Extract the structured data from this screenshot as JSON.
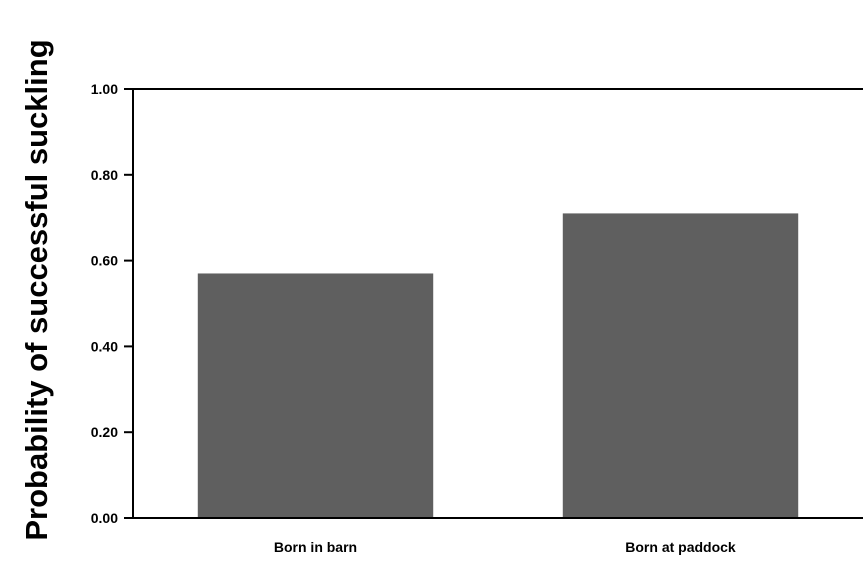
{
  "chart_data": {
    "type": "bar",
    "title": "",
    "xlabel": "",
    "ylabel": "Probability of successful suckling",
    "categories": [
      "Born in barn",
      "Born at paddock"
    ],
    "values": [
      0.57,
      0.71
    ],
    "ylim": [
      0,
      1.0
    ],
    "yticks": [
      "0.00",
      "0.20",
      "0.40",
      "0.60",
      "0.80",
      "1.00"
    ],
    "grid": false,
    "legend": "none",
    "bar_color": "#5f5f5f"
  }
}
